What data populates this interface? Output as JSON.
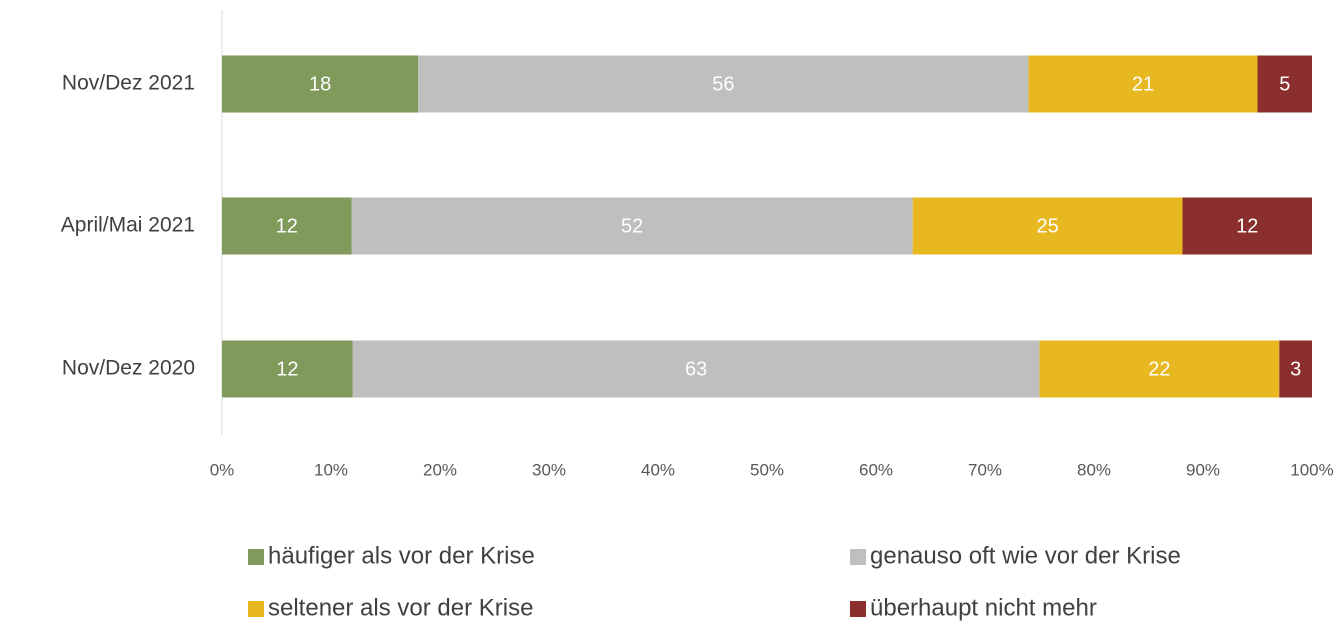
{
  "chart_data": {
    "type": "bar",
    "orientation": "horizontal",
    "stacked": "percent",
    "categories": [
      "Nov/Dez 2021",
      "April/Mai 2021",
      "Nov/Dez 2020"
    ],
    "series": [
      {
        "name": "häufiger als vor der Krise",
        "color": "#7f9a5a",
        "values": [
          18,
          12,
          12
        ]
      },
      {
        "name": "genauso oft wie vor der Krise",
        "color": "#bfbfbf",
        "values": [
          56,
          52,
          63
        ]
      },
      {
        "name": "seltener als vor der Krise",
        "color": "#e8b820",
        "values": [
          21,
          25,
          22
        ]
      },
      {
        "name": "überhaupt nicht mehr",
        "color": "#8b2e2e",
        "values": [
          5,
          12,
          3
        ]
      }
    ],
    "xlim": [
      0,
      100
    ],
    "xticks": [
      {
        "value": 0,
        "label": "0%"
      },
      {
        "value": 10,
        "label": "10%"
      },
      {
        "value": 20,
        "label": "20%"
      },
      {
        "value": 30,
        "label": "30%"
      },
      {
        "value": 40,
        "label": "40%"
      },
      {
        "value": 50,
        "label": "50%"
      },
      {
        "value": 60,
        "label": "60%"
      },
      {
        "value": 70,
        "label": "70%"
      },
      {
        "value": 80,
        "label": "80%"
      },
      {
        "value": 90,
        "label": "90%"
      },
      {
        "value": 100,
        "label": "100%"
      }
    ],
    "legend": "bottom"
  }
}
